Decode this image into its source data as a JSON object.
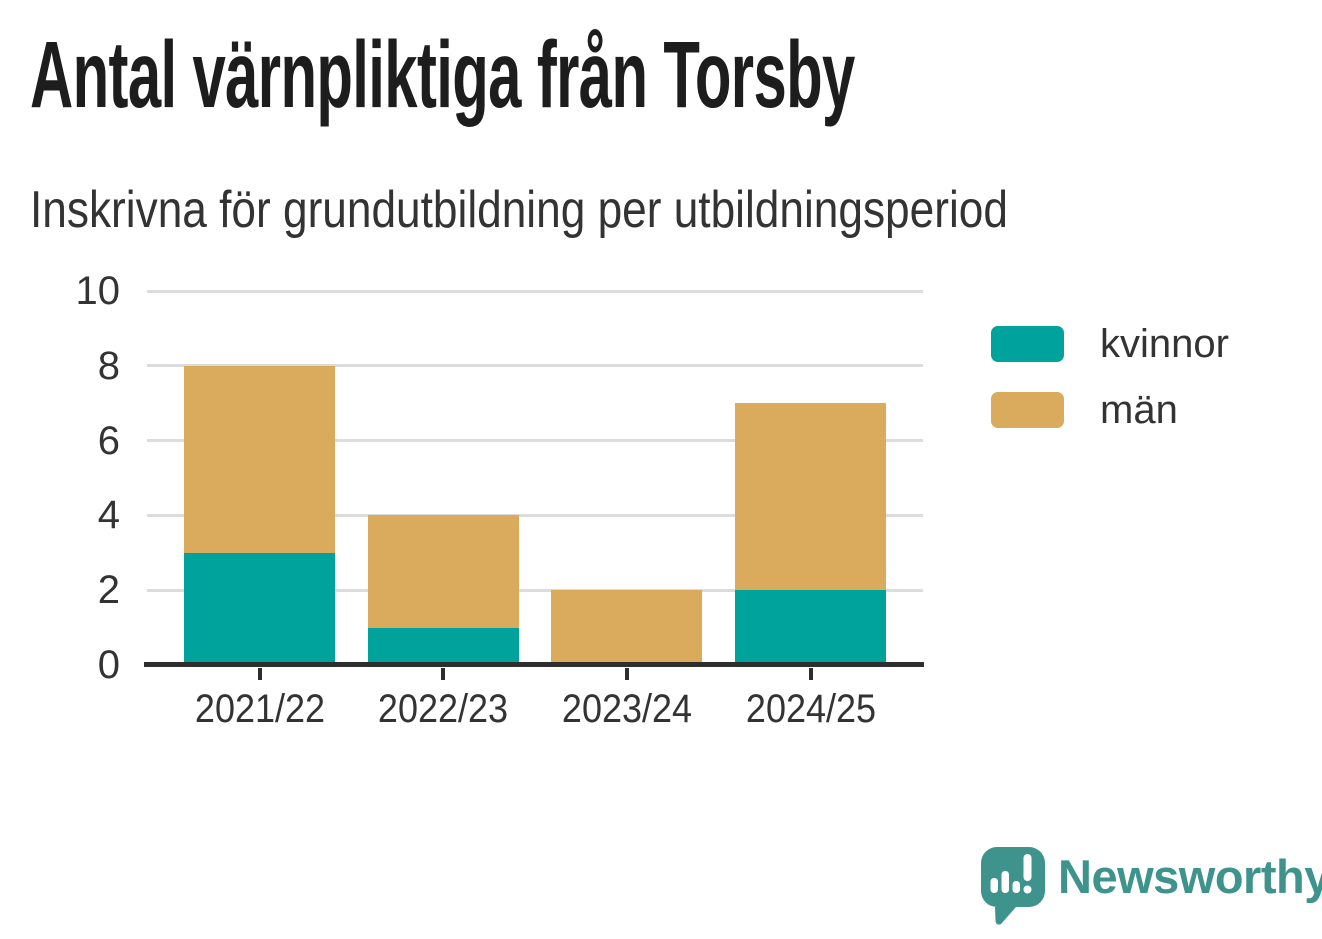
{
  "chart_data": {
    "type": "bar",
    "stacked": true,
    "title": "Antal värnpliktiga från Torsby",
    "subtitle": "Inskrivna för grundutbildning per utbildningsperiod",
    "categories": [
      "2021/22",
      "2022/23",
      "2023/24",
      "2024/25"
    ],
    "series": [
      {
        "name": "kvinnor",
        "color": "#00a39b",
        "values": [
          3,
          1,
          0,
          2
        ]
      },
      {
        "name": "män",
        "color": "#daab5c",
        "values": [
          5,
          3,
          2,
          5
        ]
      }
    ],
    "totals": [
      8,
      4,
      2,
      7
    ],
    "ylim": [
      0,
      10
    ],
    "yticks": [
      0,
      2,
      4,
      6,
      8,
      10
    ],
    "xlabel": "",
    "ylabel": "",
    "grid": "horizontal",
    "legend_position": "right-top"
  },
  "branding": {
    "name": "Newsworthy",
    "logo_icon": "speech-bubble-bar-chart-icon",
    "color": "#3e948c"
  },
  "colors": {
    "background": "#ffffff",
    "axis": "#2e2e2e",
    "gridline": "#dcdcdc",
    "text": "#333333",
    "title_text": "#1d1d1d"
  }
}
